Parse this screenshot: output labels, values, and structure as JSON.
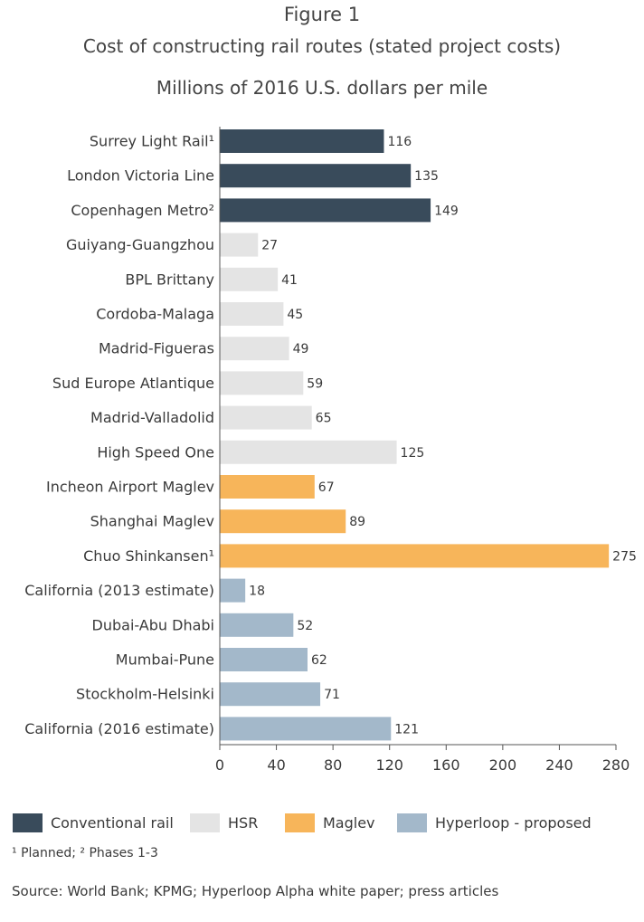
{
  "figure_label": "Figure 1",
  "footnote": "¹ Planned; ² Phases 1-3",
  "source": "Source: World Bank; KPMG; Hyperloop Alpha white paper; press articles",
  "chart_data": {
    "type": "bar",
    "orientation": "horizontal",
    "title": "Cost of constructing rail routes (stated project costs)",
    "subtitle": "Millions of 2016 U.S. dollars per mile",
    "xlabel": "",
    "ylabel": "",
    "xlim": [
      0,
      280
    ],
    "ticks": [
      0,
      40,
      80,
      120,
      160,
      200,
      240,
      280
    ],
    "grid": false,
    "legend_position": "bottom",
    "groups": [
      {
        "name": "Conventional rail",
        "color": "#394b5b"
      },
      {
        "name": "HSR",
        "color": "#e4e4e4"
      },
      {
        "name": "Maglev",
        "color": "#f7b55a"
      },
      {
        "name": "Hyperloop - proposed",
        "color": "#a3b8ca"
      }
    ],
    "bars": [
      {
        "label": "Surrey Light Rail¹",
        "value": 116,
        "group": "Conventional rail"
      },
      {
        "label": "London Victoria Line",
        "value": 135,
        "group": "Conventional rail"
      },
      {
        "label": "Copenhagen Metro²",
        "value": 149,
        "group": "Conventional rail"
      },
      {
        "label": "Guiyang-Guangzhou",
        "value": 27,
        "group": "HSR"
      },
      {
        "label": "BPL Brittany",
        "value": 41,
        "group": "HSR"
      },
      {
        "label": "Cordoba-Malaga",
        "value": 45,
        "group": "HSR"
      },
      {
        "label": "Madrid-Figueras",
        "value": 49,
        "group": "HSR"
      },
      {
        "label": "Sud Europe Atlantique",
        "value": 59,
        "group": "HSR"
      },
      {
        "label": "Madrid-Valladolid",
        "value": 65,
        "group": "HSR"
      },
      {
        "label": "High Speed One",
        "value": 125,
        "group": "HSR"
      },
      {
        "label": "Incheon Airport Maglev",
        "value": 67,
        "group": "Maglev"
      },
      {
        "label": "Shanghai Maglev",
        "value": 89,
        "group": "Maglev"
      },
      {
        "label": "Chuo Shinkansen¹",
        "value": 275,
        "group": "Maglev"
      },
      {
        "label": "California (2013 estimate)",
        "value": 18,
        "group": "Hyperloop - proposed"
      },
      {
        "label": "Dubai-Abu Dhabi",
        "value": 52,
        "group": "Hyperloop - proposed"
      },
      {
        "label": "Mumbai-Pune",
        "value": 62,
        "group": "Hyperloop - proposed"
      },
      {
        "label": "Stockholm-Helsinki",
        "value": 71,
        "group": "Hyperloop - proposed"
      },
      {
        "label": "California (2016 estimate)",
        "value": 121,
        "group": "Hyperloop - proposed"
      }
    ]
  }
}
